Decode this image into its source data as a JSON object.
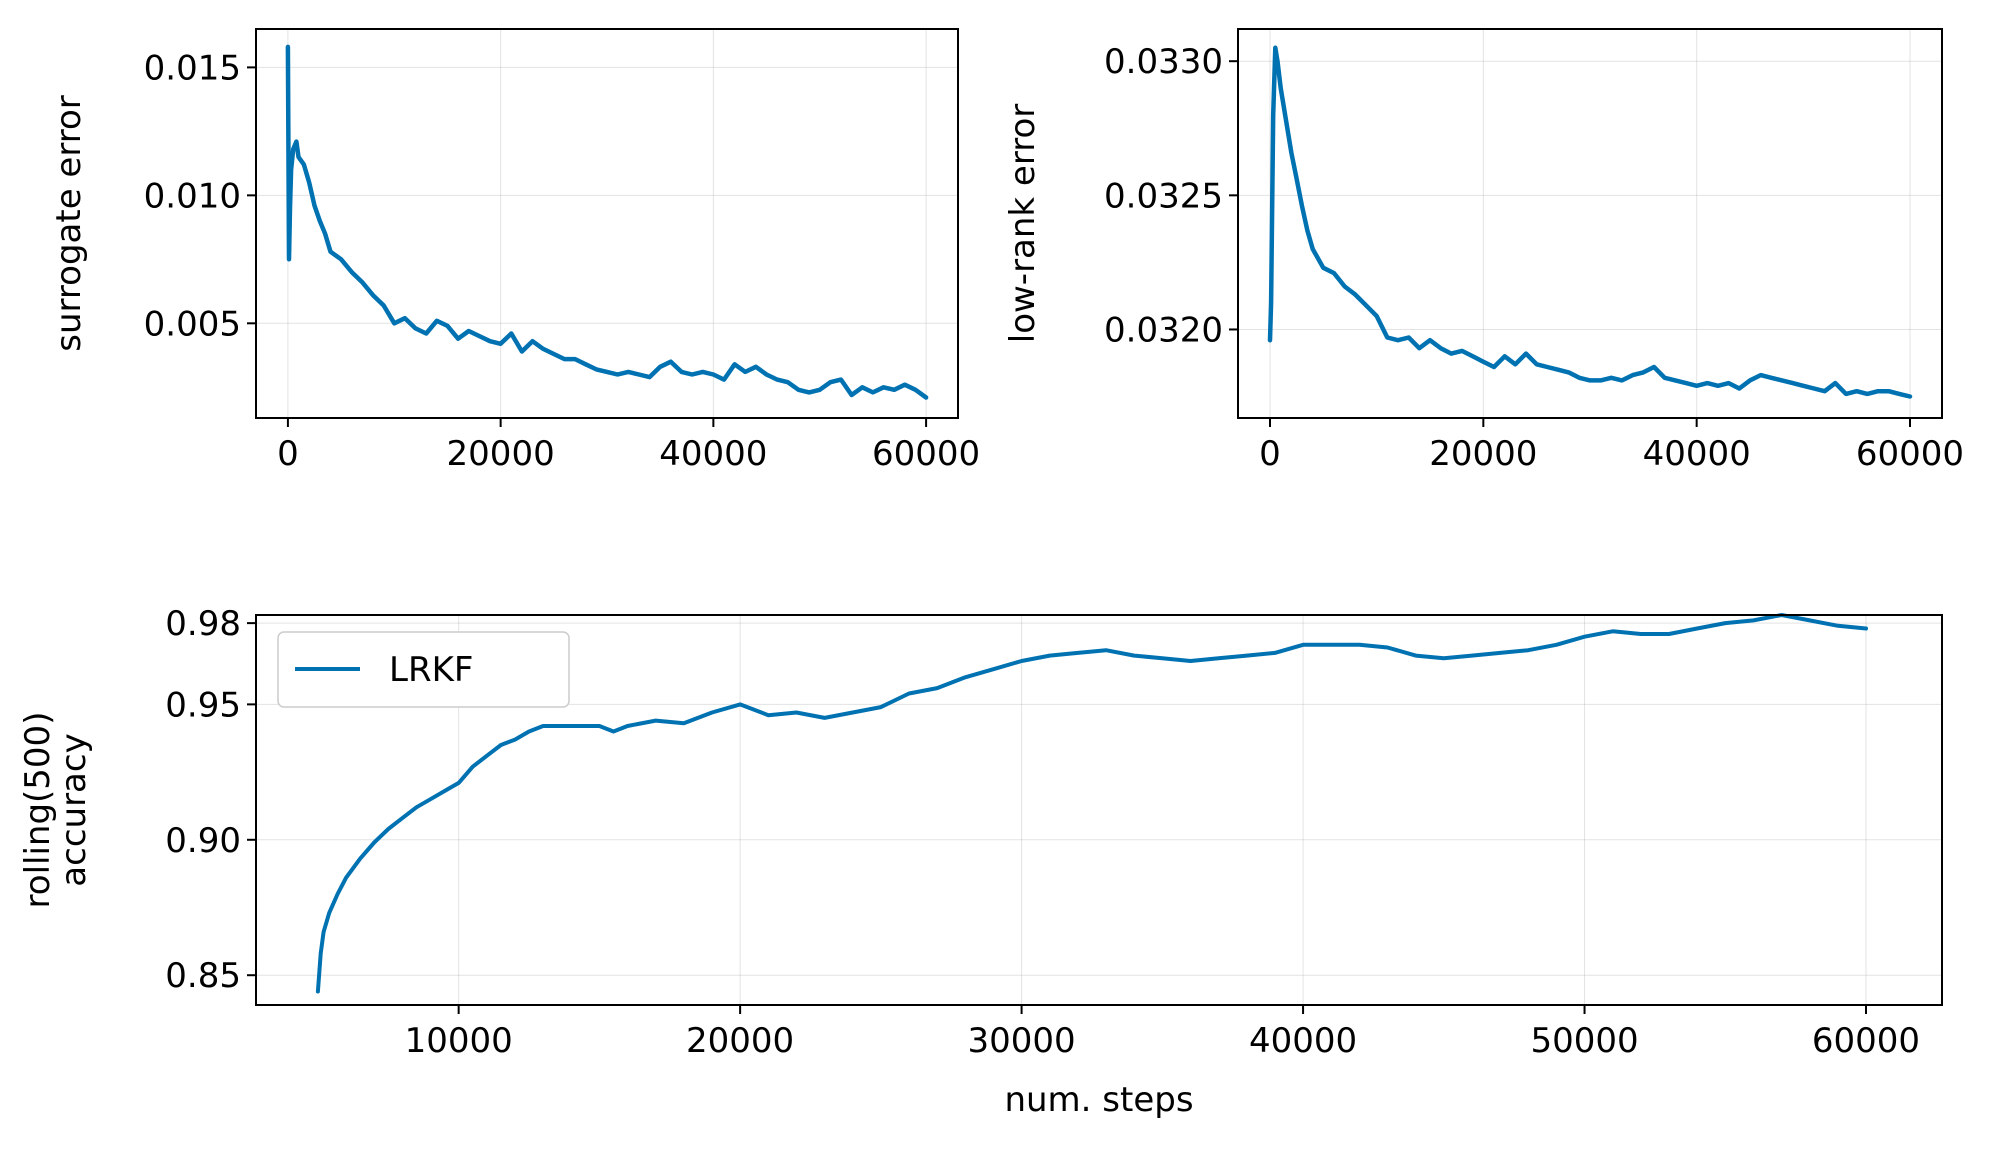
{
  "colors": {
    "series": "#0072b2"
  },
  "chart_data": [
    {
      "type": "line",
      "title": "",
      "xlabel": "",
      "ylabel": "surrogate error",
      "xlim": [
        -3000,
        63000
      ],
      "ylim": [
        0.0013,
        0.0165
      ],
      "xticks": [
        0,
        20000,
        40000,
        60000
      ],
      "xtick_labels": [
        "0",
        "20000",
        "40000",
        "60000"
      ],
      "yticks": [
        0.005,
        0.01,
        0.015
      ],
      "ytick_labels": [
        "0.005",
        "0.010",
        "0.015"
      ],
      "grid": true,
      "series": [
        {
          "color": "#0072b2",
          "x": [
            0,
            100,
            200,
            300,
            500,
            800,
            1000,
            1500,
            2000,
            2500,
            3000,
            3500,
            4000,
            5000,
            6000,
            7000,
            8000,
            9000,
            10000,
            11000,
            12000,
            13000,
            14000,
            15000,
            16000,
            17000,
            18000,
            19000,
            20000,
            21000,
            22000,
            23000,
            24000,
            25000,
            26000,
            27000,
            28000,
            29000,
            30000,
            31000,
            32000,
            33000,
            34000,
            35000,
            36000,
            37000,
            38000,
            39000,
            40000,
            41000,
            42000,
            43000,
            44000,
            45000,
            46000,
            47000,
            48000,
            49000,
            50000,
            51000,
            52000,
            53000,
            54000,
            55000,
            56000,
            57000,
            58000,
            59000,
            60000
          ],
          "y": [
            0.0158,
            0.0075,
            0.0095,
            0.011,
            0.0118,
            0.0121,
            0.0115,
            0.0112,
            0.0105,
            0.0096,
            0.009,
            0.0085,
            0.0078,
            0.0075,
            0.007,
            0.0066,
            0.0061,
            0.0057,
            0.005,
            0.0052,
            0.0048,
            0.0046,
            0.0051,
            0.0049,
            0.0044,
            0.0047,
            0.0045,
            0.0043,
            0.0042,
            0.0046,
            0.0039,
            0.0043,
            0.004,
            0.0038,
            0.0036,
            0.0036,
            0.0034,
            0.0032,
            0.0031,
            0.003,
            0.0031,
            0.003,
            0.0029,
            0.0033,
            0.0035,
            0.0031,
            0.003,
            0.0031,
            0.003,
            0.0028,
            0.0034,
            0.0031,
            0.0033,
            0.003,
            0.0028,
            0.0027,
            0.0024,
            0.0023,
            0.0024,
            0.0027,
            0.0028,
            0.0022,
            0.0025,
            0.0023,
            0.0025,
            0.0024,
            0.0026,
            0.0024,
            0.0021
          ]
        }
      ]
    },
    {
      "type": "line",
      "title": "",
      "xlabel": "",
      "ylabel": "low-rank error",
      "xlim": [
        -3000,
        63000
      ],
      "ylim": [
        0.03167,
        0.03312
      ],
      "xticks": [
        0,
        20000,
        40000,
        60000
      ],
      "xtick_labels": [
        "0",
        "20000",
        "40000",
        "60000"
      ],
      "yticks": [
        0.032,
        0.0325,
        0.033
      ],
      "ytick_labels": [
        "0.0320",
        "0.0325",
        "0.0330"
      ],
      "grid": true,
      "series": [
        {
          "color": "#0072b2",
          "x": [
            0,
            100,
            300,
            500,
            700,
            1000,
            1500,
            2000,
            2500,
            3000,
            3500,
            4000,
            5000,
            6000,
            7000,
            8000,
            9000,
            10000,
            11000,
            12000,
            13000,
            14000,
            15000,
            16000,
            17000,
            18000,
            19000,
            20000,
            21000,
            22000,
            23000,
            24000,
            25000,
            26000,
            27000,
            28000,
            29000,
            30000,
            31000,
            32000,
            33000,
            34000,
            35000,
            36000,
            37000,
            38000,
            39000,
            40000,
            41000,
            42000,
            43000,
            44000,
            45000,
            46000,
            47000,
            48000,
            49000,
            50000,
            51000,
            52000,
            53000,
            54000,
            55000,
            56000,
            57000,
            58000,
            59000,
            60000
          ],
          "y": [
            0.03196,
            0.0321,
            0.0328,
            0.03305,
            0.033,
            0.0329,
            0.03278,
            0.03266,
            0.03256,
            0.03246,
            0.03237,
            0.0323,
            0.03223,
            0.03221,
            0.03216,
            0.03213,
            0.03209,
            0.03205,
            0.03197,
            0.03196,
            0.03197,
            0.03193,
            0.03196,
            0.03193,
            0.03191,
            0.03192,
            0.0319,
            0.03188,
            0.03186,
            0.0319,
            0.03187,
            0.03191,
            0.03187,
            0.03186,
            0.03185,
            0.03184,
            0.03182,
            0.03181,
            0.03181,
            0.03182,
            0.03181,
            0.03183,
            0.03184,
            0.03186,
            0.03182,
            0.03181,
            0.0318,
            0.03179,
            0.0318,
            0.03179,
            0.0318,
            0.03178,
            0.03181,
            0.03183,
            0.03182,
            0.03181,
            0.0318,
            0.03179,
            0.03178,
            0.03177,
            0.0318,
            0.03176,
            0.03177,
            0.03176,
            0.03177,
            0.03177,
            0.03176,
            0.03175
          ]
        }
      ]
    },
    {
      "type": "line",
      "title": "",
      "xlabel": "num. steps",
      "ylabel": "rolling(500)\naccuracy",
      "xlim": [
        2800,
        62700
      ],
      "ylim": [
        0.839,
        0.983
      ],
      "xticks": [
        10000,
        20000,
        30000,
        40000,
        50000,
        60000
      ],
      "xtick_labels": [
        "10000",
        "20000",
        "30000",
        "40000",
        "50000",
        "60000"
      ],
      "yticks": [
        0.85,
        0.9,
        0.95,
        0.98
      ],
      "ytick_labels": [
        "0.85",
        "0.90",
        "0.95",
        "0.98"
      ],
      "grid": true,
      "legend": {
        "position": "top-left",
        "entries": [
          "LRKF"
        ]
      },
      "series": [
        {
          "name": "LRKF",
          "color": "#0072b2",
          "x": [
            5000,
            5100,
            5200,
            5400,
            5700,
            6000,
            6500,
            7000,
            7500,
            8000,
            8500,
            9000,
            9500,
            10000,
            10500,
            11000,
            11500,
            12000,
            12500,
            13000,
            14000,
            15000,
            15500,
            16000,
            17000,
            18000,
            19000,
            20000,
            21000,
            22000,
            23000,
            24000,
            25000,
            26000,
            27000,
            28000,
            29000,
            30000,
            31000,
            32000,
            33000,
            34000,
            35000,
            36000,
            37000,
            38000,
            39000,
            40000,
            41000,
            42000,
            43000,
            44000,
            45000,
            46000,
            47000,
            48000,
            49000,
            50000,
            51000,
            52000,
            53000,
            54000,
            55000,
            56000,
            57000,
            58000,
            59000,
            60000
          ],
          "y": [
            0.844,
            0.858,
            0.866,
            0.873,
            0.88,
            0.886,
            0.893,
            0.899,
            0.904,
            0.908,
            0.912,
            0.915,
            0.918,
            0.921,
            0.927,
            0.931,
            0.935,
            0.937,
            0.94,
            0.942,
            0.942,
            0.942,
            0.94,
            0.942,
            0.944,
            0.943,
            0.947,
            0.95,
            0.946,
            0.947,
            0.945,
            0.947,
            0.949,
            0.954,
            0.956,
            0.96,
            0.963,
            0.966,
            0.968,
            0.969,
            0.97,
            0.968,
            0.967,
            0.966,
            0.967,
            0.968,
            0.969,
            0.972,
            0.972,
            0.972,
            0.971,
            0.968,
            0.967,
            0.968,
            0.969,
            0.97,
            0.972,
            0.975,
            0.977,
            0.976,
            0.976,
            0.978,
            0.98,
            0.981,
            0.983,
            0.981,
            0.979,
            0.978
          ]
        }
      ]
    }
  ]
}
